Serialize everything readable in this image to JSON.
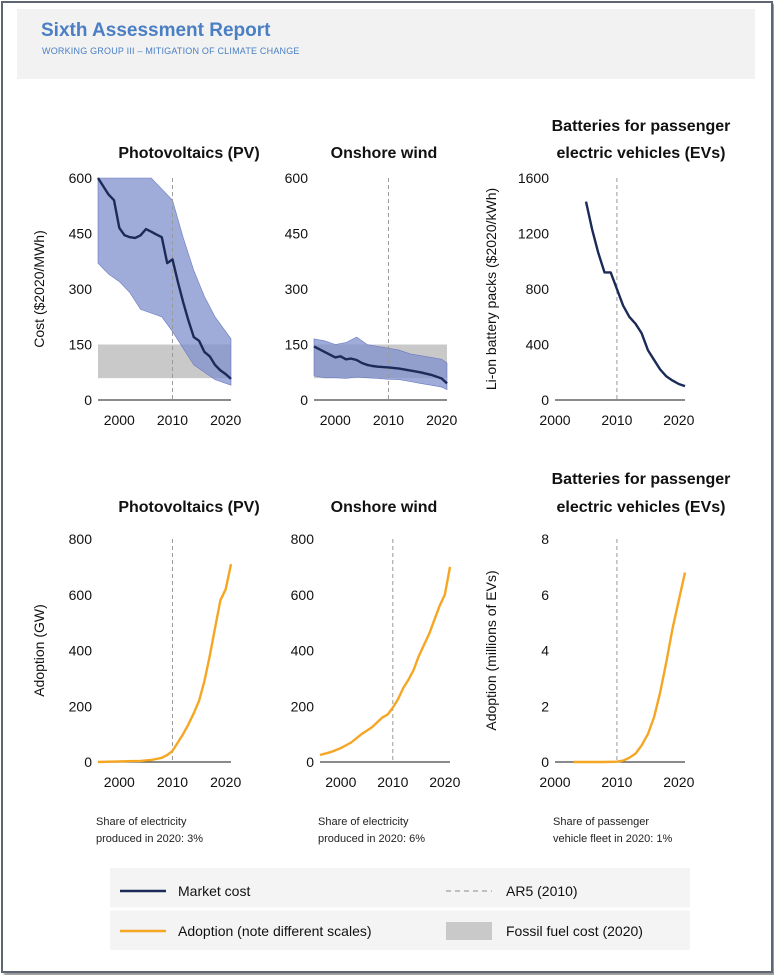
{
  "header": {
    "title": "Sixth Assessment Report",
    "subtitle": "WORKING GROUP III – MITIGATION OF CLIMATE CHANGE"
  },
  "colors": {
    "market_cost": "#1b2a57",
    "cost_band": "#7f8fcc",
    "adoption": "#f5a623",
    "fossil_fuel": "#c9c9c9",
    "ar5_line": "#9a9a9a",
    "header_text": "#4a7fc4"
  },
  "legend": {
    "market_cost": "Market cost",
    "adoption": "Adoption (note different scales)",
    "ar5": "AR5 (2010)",
    "fossil": "Fossil fuel cost (2020)"
  },
  "chart_data": [
    {
      "type": "line",
      "title": "Photovoltaics (PV)",
      "ylabel": "Cost ($2020/MWh)",
      "xlim": [
        1996,
        2021
      ],
      "ylim": [
        0,
        600
      ],
      "xticks": [
        2000,
        2010,
        2020
      ],
      "yticks": [
        0,
        150,
        300,
        450,
        600
      ],
      "ar5_year": 2010,
      "fossil_band": [
        59,
        150
      ],
      "series": [
        {
          "x": [
            1996,
            1998,
            1999,
            2000,
            2001,
            2002,
            2003,
            2004,
            2005,
            2006,
            2007,
            2008,
            2009,
            2010,
            2011,
            2012,
            2013,
            2014,
            2015,
            2016,
            2017,
            2018,
            2019,
            2020,
            2021
          ],
          "y": [
            600,
            555,
            540,
            465,
            445,
            440,
            438,
            445,
            462,
            455,
            447,
            440,
            370,
            380,
            320,
            265,
            215,
            170,
            160,
            130,
            118,
            95,
            80,
            70,
            57
          ]
        }
      ],
      "band_x": [
        1996,
        1998,
        2000,
        2002,
        2004,
        2006,
        2008,
        2010,
        2012,
        2014,
        2016,
        2018,
        2021
      ],
      "band_upper": [
        600,
        600,
        600,
        600,
        600,
        600,
        570,
        540,
        440,
        350,
        280,
        225,
        165
      ],
      "band_lower": [
        370,
        340,
        320,
        290,
        245,
        235,
        225,
        185,
        140,
        95,
        75,
        55,
        40
      ]
    },
    {
      "type": "line",
      "title": "Onshore wind",
      "ylabel": "",
      "xlim": [
        1996,
        2021
      ],
      "ylim": [
        0,
        600
      ],
      "xticks": [
        2000,
        2010,
        2020
      ],
      "yticks": [
        0,
        150,
        300,
        450,
        600
      ],
      "ar5_year": 2010,
      "fossil_band": [
        59,
        150
      ],
      "series": [
        {
          "x": [
            1996,
            1998,
            2000,
            2001,
            2002,
            2003,
            2004,
            2005,
            2006,
            2007,
            2008,
            2010,
            2012,
            2014,
            2016,
            2018,
            2020,
            2021
          ],
          "y": [
            145,
            130,
            115,
            118,
            110,
            112,
            108,
            100,
            95,
            92,
            90,
            88,
            85,
            80,
            75,
            68,
            58,
            45
          ]
        }
      ],
      "band_x": [
        1996,
        1998,
        2000,
        2002,
        2004,
        2006,
        2008,
        2010,
        2012,
        2014,
        2016,
        2018,
        2020,
        2021
      ],
      "band_upper": [
        165,
        160,
        150,
        155,
        170,
        150,
        145,
        140,
        135,
        125,
        120,
        115,
        110,
        100
      ],
      "band_lower": [
        65,
        60,
        60,
        58,
        62,
        60,
        58,
        56,
        55,
        50,
        45,
        40,
        35,
        28
      ]
    },
    {
      "type": "line",
      "title": "Batteries for passenger electric vehicles (EVs)",
      "ylabel": "Li-on battery packs ($2020/kWh)",
      "xlim": [
        2000,
        2021
      ],
      "ylim": [
        0,
        1600
      ],
      "xticks": [
        2000,
        2010,
        2020
      ],
      "yticks": [
        0,
        400,
        800,
        1200,
        1600
      ],
      "ar5_year": 2010,
      "series": [
        {
          "x": [
            2005,
            2006,
            2007,
            2008,
            2009,
            2010,
            2011,
            2012,
            2013,
            2014,
            2015,
            2016,
            2017,
            2018,
            2019,
            2020,
            2021
          ],
          "y": [
            1430,
            1230,
            1060,
            920,
            920,
            800,
            680,
            600,
            550,
            480,
            360,
            290,
            220,
            170,
            140,
            115,
            100
          ]
        }
      ]
    },
    {
      "type": "line",
      "title": "Photovoltaics (PV)",
      "ylabel": "Adoption (GW)",
      "note": "Share of electricity produced in 2020: 3%",
      "xlim": [
        1996,
        2021
      ],
      "ylim": [
        0,
        800
      ],
      "xticks": [
        2000,
        2010,
        2020
      ],
      "yticks": [
        0,
        200,
        400,
        600,
        800
      ],
      "ar5_year": 2010,
      "series": [
        {
          "x": [
            1996,
            2000,
            2004,
            2006,
            2008,
            2009,
            2010,
            2011,
            2012,
            2013,
            2014,
            2015,
            2016,
            2017,
            2018,
            2019,
            2020,
            2021
          ],
          "y": [
            0,
            2,
            4,
            7,
            15,
            25,
            40,
            70,
            100,
            135,
            175,
            220,
            290,
            380,
            480,
            580,
            620,
            710
          ]
        }
      ]
    },
    {
      "type": "line",
      "title": "Onshore wind",
      "ylabel": "",
      "note": "Share of electricity produced in 2020: 6%",
      "xlim": [
        1996,
        2021
      ],
      "ylim": [
        0,
        800
      ],
      "xticks": [
        2000,
        2010,
        2020
      ],
      "yticks": [
        0,
        200,
        400,
        600,
        800
      ],
      "ar5_year": 2010,
      "series": [
        {
          "x": [
            1996,
            1998,
            2000,
            2002,
            2004,
            2006,
            2008,
            2009,
            2010,
            2011,
            2012,
            2013,
            2014,
            2015,
            2016,
            2017,
            2018,
            2019,
            2020,
            2021
          ],
          "y": [
            25,
            35,
            50,
            70,
            100,
            125,
            160,
            170,
            195,
            225,
            265,
            295,
            330,
            380,
            420,
            460,
            510,
            560,
            600,
            700
          ]
        }
      ]
    },
    {
      "type": "line",
      "title": "Batteries for passenger electric vehicles (EVs)",
      "ylabel": "Adoption (millions of EVs)",
      "note": "Share of passenger vehicle fleet in 2020: 1%",
      "xlim": [
        2000,
        2021
      ],
      "ylim": [
        0,
        8
      ],
      "xticks": [
        2000,
        2010,
        2020
      ],
      "yticks": [
        0,
        2,
        4,
        6,
        8
      ],
      "ar5_year": 2010,
      "series": [
        {
          "x": [
            2003,
            2008,
            2010,
            2011,
            2012,
            2013,
            2014,
            2015,
            2016,
            2017,
            2018,
            2019,
            2020,
            2021
          ],
          "y": [
            0,
            0,
            0.01,
            0.05,
            0.15,
            0.3,
            0.6,
            1.0,
            1.6,
            2.5,
            3.6,
            4.8,
            5.8,
            6.8
          ]
        }
      ]
    }
  ]
}
